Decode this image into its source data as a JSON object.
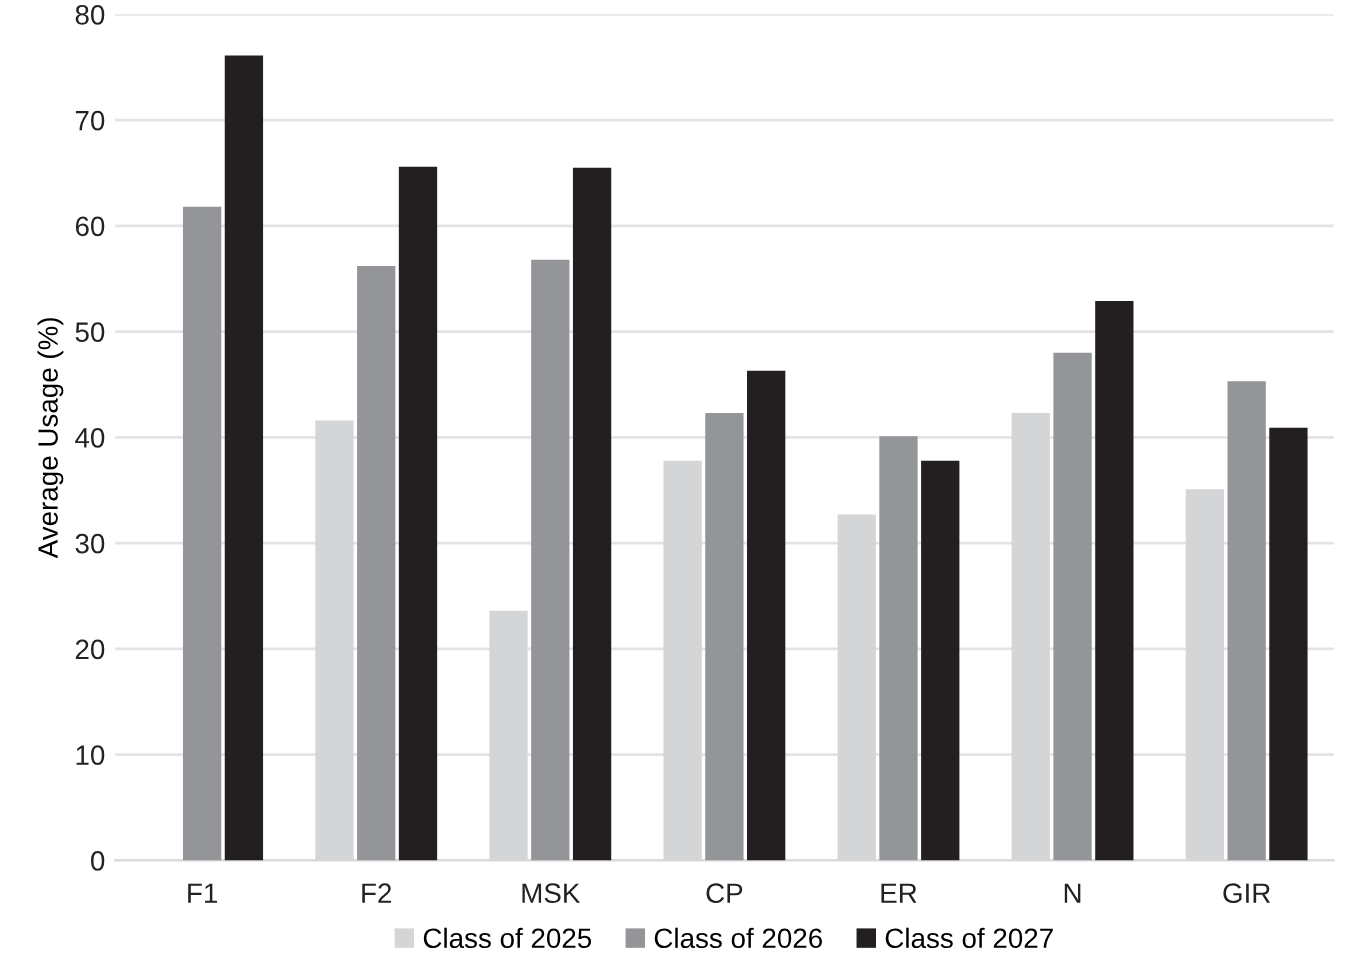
{
  "chart_data": {
    "type": "bar",
    "ylabel": "Average Usage (%)",
    "categories": [
      "F1",
      "F2",
      "MSK",
      "CP",
      "ER",
      "N",
      "GIR"
    ],
    "series": [
      {
        "name": "Class of 2025",
        "color": "#d4d5d6",
        "values": [
          null,
          41.6,
          23.6,
          37.8,
          32.7,
          42.3,
          35.1
        ]
      },
      {
        "name": "Class of 2026",
        "color": "#939598",
        "values": [
          61.8,
          56.2,
          56.8,
          42.3,
          40.1,
          48.0,
          45.3
        ]
      },
      {
        "name": "Class of 2027",
        "color": "#231f20",
        "values": [
          76.1,
          65.6,
          65.5,
          46.3,
          37.8,
          52.9,
          40.9
        ]
      }
    ],
    "ylim": [
      0,
      80
    ],
    "yticks": [
      0,
      10,
      20,
      30,
      40,
      50,
      60,
      70,
      80
    ],
    "grid": "y",
    "legend": "bottom"
  }
}
